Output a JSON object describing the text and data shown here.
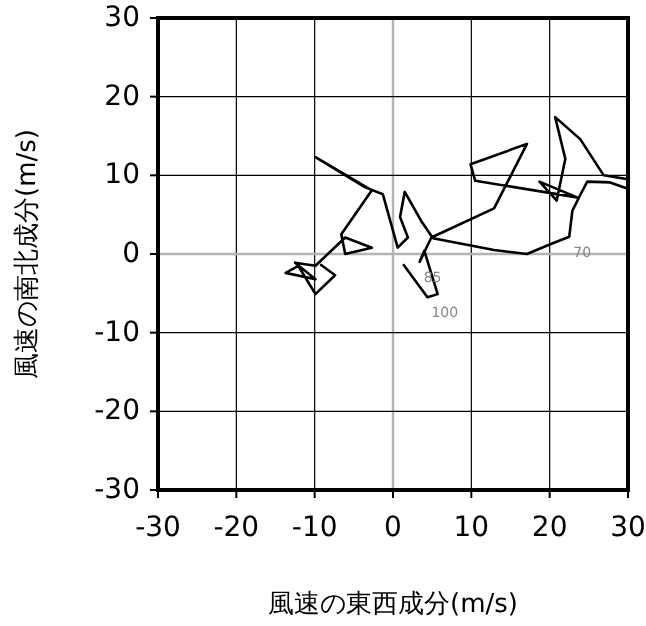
{
  "chart_data": {
    "type": "line",
    "xlabel": "風速の東西成分(m/s)",
    "ylabel": "風速の南北成分(m/s)",
    "xlim": [
      -30,
      30
    ],
    "ylim": [
      -30,
      30
    ],
    "xticks": [
      -30,
      -20,
      -10,
      0,
      10,
      20,
      30
    ],
    "yticks": [
      -30,
      -20,
      -10,
      0,
      10,
      20,
      30
    ],
    "grid": true,
    "series": [
      {
        "color": "#000000",
        "x": [
          1.3,
          4.4,
          5.7,
          4.0,
          3.4,
          4.9,
          12.9,
          17.1,
          9.9,
          10.5,
          23.5,
          18.7,
          20.9,
          22.0,
          20.7,
          23.9,
          26.9,
          30,
          30,
          27.7,
          24.8,
          23.9,
          22.9,
          22.5,
          20,
          17.1,
          12.9,
          5.1,
          3.6,
          1.5,
          0.9,
          1.9,
          0.6,
          -1.3,
          -3.6,
          -9.9,
          -2.7,
          -6.6,
          -6.1,
          -2.7,
          -6.1,
          -9.9,
          -12.5,
          -9.9,
          -13.7,
          -12.1,
          -9.9,
          -7.4,
          -9.3
        ],
        "values": [
          -1.3,
          -5.5,
          -5.1,
          0.4,
          -1.0,
          2.1,
          5.8,
          14.0,
          11.4,
          9.3,
          7.2,
          9.2,
          6.8,
          12.1,
          17.4,
          14.6,
          10.0,
          9.5,
          8.3,
          9.1,
          9.2,
          7.5,
          5.5,
          2.2,
          1.2,
          0.0,
          0.5,
          2.0,
          4.2,
          7.9,
          4.7,
          2.1,
          0.8,
          7.6,
          8.5,
          12.3,
          8.1,
          2.5,
          0,
          0.8,
          2.1,
          -1.5,
          -1.1,
          -3.2,
          -2.4,
          -1.5,
          -5.1,
          -2.7,
          -1.3
        ]
      }
    ],
    "annotations": [
      {
        "text": "100",
        "x": 4.4,
        "y": -5.5
      },
      {
        "text": "85",
        "x": 3.4,
        "y": -1.0
      },
      {
        "text": "70",
        "x": 22.5,
        "y": 2.2
      }
    ]
  }
}
